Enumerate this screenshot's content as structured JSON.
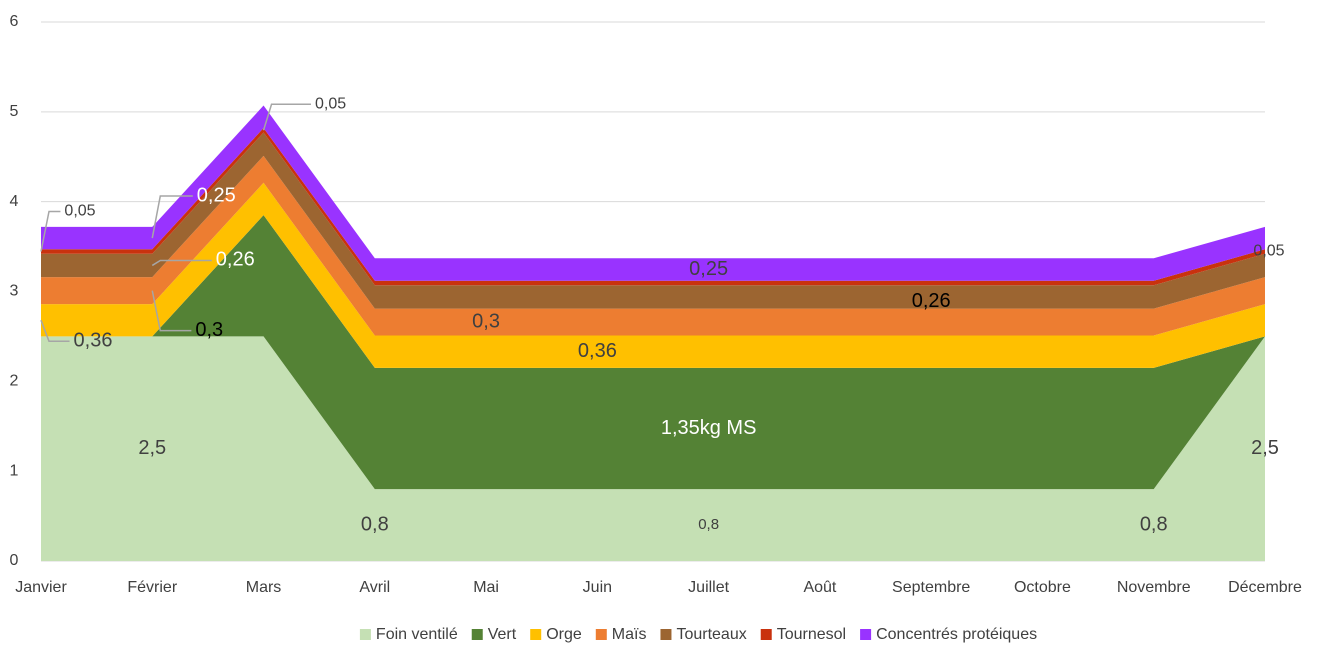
{
  "chart_data": {
    "type": "stacked-area",
    "categories": [
      "Janvier",
      "Février",
      "Mars",
      "Avril",
      "Mai",
      "Juin",
      "Juillet",
      "Août",
      "Septembre",
      "Octobre",
      "Novembre",
      "Décembre"
    ],
    "ylim": [
      0,
      6
    ],
    "yticks": [
      0,
      1,
      2,
      3,
      4,
      5,
      6
    ],
    "grid": true,
    "legend": "bottom",
    "series": [
      {
        "name": "Foin ventilé",
        "color": "#c5e0b4",
        "values": [
          2.5,
          2.5,
          2.5,
          0.8,
          0.8,
          0.8,
          0.8,
          0.8,
          0.8,
          0.8,
          0.8,
          2.5
        ],
        "value_labels": [
          null,
          "2,5",
          null,
          "0,8",
          null,
          null,
          "0,8",
          null,
          null,
          null,
          "0,8",
          "2,5"
        ]
      },
      {
        "name": "Vert",
        "color": "#548235",
        "values": [
          0,
          0,
          1.35,
          1.35,
          1.35,
          1.35,
          1.35,
          1.35,
          1.35,
          1.35,
          1.35,
          0
        ],
        "value_labels": [
          null,
          null,
          null,
          null,
          null,
          null,
          "1,35kg MS",
          null,
          null,
          null,
          null,
          null
        ]
      },
      {
        "name": "Orge",
        "color": "#ffc000",
        "values": [
          0.36,
          0.36,
          0.36,
          0.36,
          0.36,
          0.36,
          0.36,
          0.36,
          0.36,
          0.36,
          0.36,
          0.36
        ],
        "value_labels": [
          "0,36",
          null,
          null,
          null,
          null,
          "0,36",
          null,
          null,
          null,
          null,
          null,
          null
        ]
      },
      {
        "name": "Maïs",
        "color": "#ed7d31",
        "values": [
          0.3,
          0.3,
          0.3,
          0.3,
          0.3,
          0.3,
          0.3,
          0.3,
          0.3,
          0.3,
          0.3,
          0.3
        ],
        "value_labels": [
          null,
          "0,3",
          null,
          null,
          "0,3",
          null,
          null,
          null,
          null,
          null,
          null,
          null
        ]
      },
      {
        "name": "Tourteaux",
        "color": "#9c6531",
        "values": [
          0.26,
          0.26,
          0.26,
          0.26,
          0.26,
          0.26,
          0.26,
          0.26,
          0.26,
          0.26,
          0.26,
          0.26
        ],
        "value_labels": [
          null,
          "0,26",
          null,
          null,
          null,
          null,
          null,
          null,
          "0,26",
          null,
          null,
          null
        ]
      },
      {
        "name": "Tournesol",
        "color": "#c9320e",
        "values": [
          0.05,
          0.05,
          0.05,
          0.05,
          0.05,
          0.05,
          0.05,
          0.05,
          0.05,
          0.05,
          0.05,
          0.05
        ],
        "value_labels": [
          "0,05",
          null,
          "0,05",
          null,
          null,
          null,
          null,
          null,
          null,
          null,
          null,
          "0,05"
        ]
      },
      {
        "name": "Concentrés protéiques",
        "color": "#9933ff",
        "values": [
          0.25,
          0.25,
          0.25,
          0.25,
          0.25,
          0.25,
          0.25,
          0.25,
          0.25,
          0.25,
          0.25,
          0.25
        ],
        "value_labels": [
          null,
          "0,25",
          null,
          null,
          null,
          null,
          "0,25",
          null,
          null,
          null,
          null,
          null
        ]
      }
    ]
  }
}
